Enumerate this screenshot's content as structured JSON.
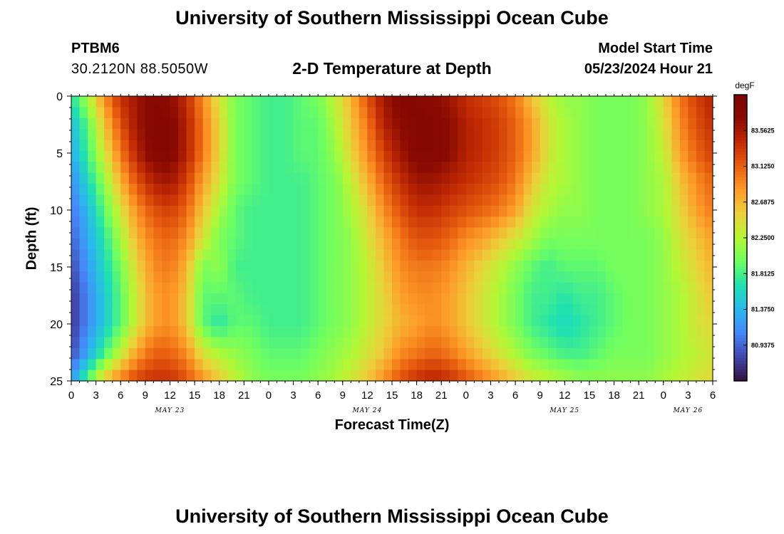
{
  "header": {
    "title": "University of Southern Mississippi Ocean Cube",
    "bottom_title": "University of Southern Mississippi Ocean Cube",
    "station": "PTBM6",
    "coordinates": "30.2120N  88.5050W",
    "chart_title": "2-D Temperature at Depth",
    "start_label": "Model Start Time",
    "start_value": "05/23/2024 Hour 21"
  },
  "chart_data": {
    "type": "heatmap",
    "title": "2-D Temperature at Depth",
    "xlabel": "Forecast Time(Z)",
    "ylabel": "Depth (ft)",
    "x_tick_labels": [
      "0",
      "3",
      "6",
      "9",
      "12",
      "15",
      "18",
      "21",
      "0",
      "3",
      "6",
      "9",
      "12",
      "15",
      "18",
      "21",
      "0",
      "3",
      "6",
      "9",
      "12",
      "15",
      "18",
      "21",
      "0",
      "3",
      "6"
    ],
    "x_hours_from_may23_00z": [
      0,
      3,
      6,
      9,
      12,
      15,
      18,
      21,
      24,
      27,
      30,
      33,
      36,
      39,
      42,
      45,
      48,
      51,
      54,
      57,
      60,
      63,
      66,
      69,
      72,
      75,
      78
    ],
    "xlim_hours": [
      0,
      78
    ],
    "date_labels": [
      {
        "label": "MAY 23",
        "hour": 12
      },
      {
        "label": "MAY 24",
        "hour": 36
      },
      {
        "label": "MAY 25",
        "hour": 60
      },
      {
        "label": "MAY 26",
        "hour": 75
      }
    ],
    "y_tick_labels": [
      "0",
      "5",
      "10",
      "15",
      "20",
      "25"
    ],
    "y_ticks": [
      0,
      5,
      10,
      15,
      20,
      25
    ],
    "ylim": [
      0,
      25
    ],
    "y_inverted": true,
    "colorbar": {
      "units": "degF",
      "tick_labels": [
        "83.5625",
        "83.1250",
        "82.6875",
        "82.2500",
        "81.8125",
        "81.3750",
        "80.9375"
      ],
      "range": [
        80.5,
        84.0
      ],
      "colormap": [
        "#30123b",
        "#4146ac",
        "#4686fa",
        "#2ab8ec",
        "#1fe0b1",
        "#6dfe62",
        "#b5f734",
        "#ecd03a",
        "#fd9b28",
        "#e85e0f",
        "#c22b04",
        "#8a0a02",
        "#7a0403"
      ]
    },
    "model": {
      "description_values": "temperature in degF sampled on a grid of hours (x) and depth in ft (y)",
      "hours": [
        0,
        2,
        4,
        6,
        8,
        10,
        12,
        14,
        16,
        18,
        20,
        22,
        24,
        26,
        28,
        30,
        32,
        34,
        36,
        38,
        40,
        42,
        44,
        46,
        48,
        50,
        52,
        54,
        56,
        58,
        60,
        62,
        64,
        66,
        68,
        70,
        72,
        74,
        76,
        78
      ],
      "depths": [
        0,
        2.5,
        5,
        7.5,
        10,
        12.5,
        15,
        17.5,
        20,
        22.5,
        25
      ],
      "values": [
        [
          81.7,
          81.4,
          81.3,
          81.1,
          81.0,
          80.9,
          80.8,
          80.7,
          80.7,
          80.8,
          81.2
        ],
        [
          82.2,
          81.9,
          81.8,
          81.6,
          81.4,
          81.3,
          81.2,
          81.1,
          81.1,
          81.3,
          81.9
        ],
        [
          82.9,
          82.6,
          82.4,
          82.1,
          81.9,
          81.7,
          81.6,
          81.5,
          81.5,
          81.8,
          82.6
        ],
        [
          83.4,
          83.2,
          83.0,
          82.7,
          82.4,
          82.2,
          82.0,
          81.9,
          81.9,
          82.3,
          83.0
        ],
        [
          83.6,
          83.6,
          83.5,
          83.2,
          82.9,
          82.7,
          82.5,
          82.4,
          82.4,
          82.8,
          83.3
        ],
        [
          83.8,
          83.8,
          83.8,
          83.5,
          83.2,
          83.0,
          82.9,
          82.8,
          82.8,
          83.1,
          83.4
        ],
        [
          83.7,
          83.8,
          83.8,
          83.6,
          83.3,
          83.1,
          83.0,
          82.9,
          82.9,
          83.1,
          83.4
        ],
        [
          83.4,
          83.5,
          83.5,
          83.3,
          83.1,
          82.9,
          82.7,
          82.6,
          82.6,
          82.9,
          83.2
        ],
        [
          82.9,
          83.0,
          83.0,
          82.8,
          82.6,
          82.4,
          82.0,
          81.9,
          81.9,
          82.4,
          82.9
        ],
        [
          82.4,
          82.5,
          82.5,
          82.4,
          82.2,
          82.0,
          82.1,
          81.9,
          81.7,
          82.2,
          82.6
        ],
        [
          82.0,
          82.0,
          82.0,
          82.0,
          81.9,
          81.9,
          81.8,
          81.9,
          81.9,
          82.1,
          82.3
        ],
        [
          81.9,
          81.9,
          81.9,
          81.9,
          81.8,
          81.8,
          81.8,
          81.8,
          81.9,
          82.0,
          82.1
        ],
        [
          81.8,
          81.8,
          81.8,
          81.8,
          81.8,
          81.8,
          81.8,
          81.8,
          81.8,
          81.9,
          82.0
        ],
        [
          81.8,
          81.8,
          81.8,
          81.8,
          81.8,
          81.8,
          81.8,
          81.8,
          81.8,
          81.9,
          82.0
        ],
        [
          81.9,
          81.9,
          81.9,
          81.8,
          81.8,
          81.8,
          81.8,
          81.8,
          81.8,
          81.9,
          82.0
        ],
        [
          82.0,
          81.9,
          81.9,
          81.9,
          81.9,
          81.9,
          81.9,
          81.9,
          81.9,
          82.0,
          82.1
        ],
        [
          82.3,
          82.2,
          82.1,
          82.0,
          82.0,
          82.0,
          82.0,
          82.0,
          82.0,
          82.1,
          82.2
        ],
        [
          82.7,
          82.6,
          82.5,
          82.3,
          82.2,
          82.1,
          82.1,
          82.1,
          82.1,
          82.2,
          82.4
        ],
        [
          83.2,
          83.0,
          82.9,
          82.7,
          82.5,
          82.4,
          82.3,
          82.3,
          82.3,
          82.4,
          82.6
        ],
        [
          83.6,
          83.5,
          83.3,
          83.1,
          82.9,
          82.7,
          82.6,
          82.5,
          82.5,
          82.6,
          82.9
        ],
        [
          83.8,
          83.7,
          83.6,
          83.4,
          83.2,
          83.0,
          82.9,
          82.8,
          82.7,
          82.9,
          83.2
        ],
        [
          83.8,
          83.8,
          83.8,
          83.6,
          83.4,
          83.2,
          83.0,
          82.9,
          82.8,
          83.0,
          83.4
        ],
        [
          83.7,
          83.8,
          83.8,
          83.6,
          83.4,
          83.2,
          83.0,
          82.9,
          82.9,
          83.1,
          83.5
        ],
        [
          83.6,
          83.7,
          83.7,
          83.5,
          83.3,
          83.1,
          82.9,
          82.8,
          82.8,
          83.0,
          83.4
        ],
        [
          83.4,
          83.5,
          83.5,
          83.4,
          83.2,
          82.9,
          82.7,
          82.6,
          82.6,
          82.8,
          83.2
        ],
        [
          83.3,
          83.4,
          83.4,
          83.3,
          83.1,
          82.8,
          82.5,
          82.4,
          82.4,
          82.6,
          83.0
        ],
        [
          83.2,
          83.3,
          83.3,
          83.2,
          83.0,
          82.6,
          82.3,
          82.2,
          82.2,
          82.4,
          82.8
        ],
        [
          83.0,
          83.1,
          83.1,
          83.0,
          82.8,
          82.4,
          82.1,
          82.0,
          82.0,
          82.2,
          82.6
        ],
        [
          82.6,
          82.8,
          82.8,
          82.6,
          82.4,
          82.2,
          81.9,
          81.8,
          81.8,
          82.0,
          82.4
        ],
        [
          82.3,
          82.4,
          82.4,
          82.3,
          82.2,
          82.0,
          81.8,
          81.8,
          81.7,
          81.9,
          82.3
        ],
        [
          82.1,
          82.2,
          82.2,
          82.2,
          82.1,
          82.0,
          81.9,
          81.7,
          81.6,
          81.8,
          82.2
        ],
        [
          82.1,
          82.1,
          82.1,
          82.1,
          82.1,
          82.0,
          81.9,
          81.8,
          81.7,
          81.8,
          82.1
        ],
        [
          82.0,
          82.0,
          82.0,
          82.0,
          82.0,
          82.0,
          81.9,
          81.8,
          81.8,
          81.9,
          82.1
        ],
        [
          82.0,
          82.0,
          82.0,
          82.0,
          82.0,
          82.0,
          82.0,
          81.9,
          81.9,
          82.0,
          82.1
        ],
        [
          82.0,
          82.0,
          82.0,
          82.0,
          82.0,
          82.0,
          82.0,
          82.0,
          82.0,
          82.0,
          82.1
        ],
        [
          82.1,
          82.1,
          82.1,
          82.1,
          82.1,
          82.0,
          82.0,
          82.0,
          82.0,
          82.0,
          82.1
        ],
        [
          82.5,
          82.4,
          82.3,
          82.2,
          82.2,
          82.1,
          82.1,
          82.1,
          82.1,
          82.1,
          82.2
        ],
        [
          83.0,
          82.9,
          82.8,
          82.6,
          82.5,
          82.4,
          82.3,
          82.2,
          82.2,
          82.2,
          82.3
        ],
        [
          83.3,
          83.2,
          83.1,
          82.9,
          82.8,
          82.6,
          82.5,
          82.4,
          82.4,
          82.3,
          82.4
        ],
        [
          83.5,
          83.4,
          83.3,
          83.1,
          83.0,
          82.8,
          82.7,
          82.6,
          82.5,
          82.4,
          82.5
        ]
      ]
    }
  }
}
